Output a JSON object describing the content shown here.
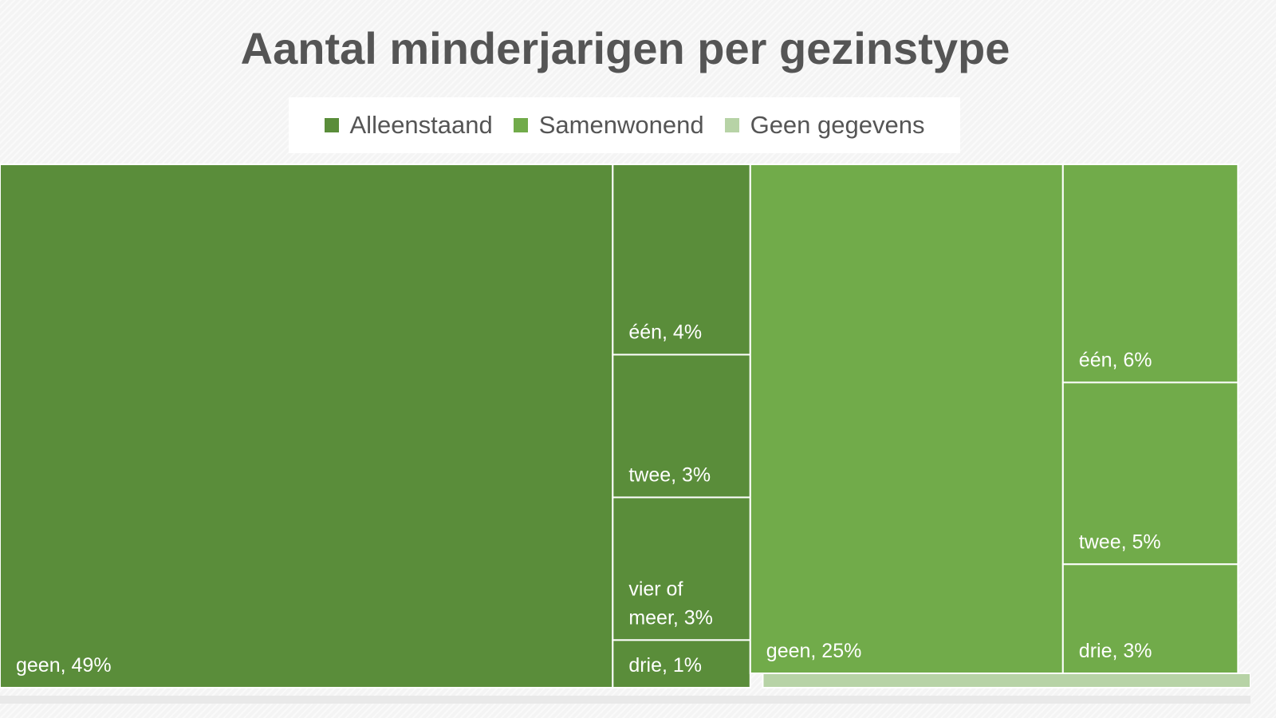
{
  "chart_data": {
    "type": "treemap",
    "title": "Aantal minderjarigen per gezinstype",
    "legend": [
      {
        "label": "Alleenstaand",
        "color": "#5a8d3a"
      },
      {
        "label": "Samenwonend",
        "color": "#71ab4a"
      },
      {
        "label": "Geen gegevens",
        "color": "#b7d3a6"
      }
    ],
    "legend_position": "top-center",
    "groups": [
      {
        "name": "Alleenstaand",
        "color": "#5a8d3a",
        "items": [
          {
            "label": "geen, 49%",
            "value": 49
          },
          {
            "label": "één, 4%",
            "value": 4
          },
          {
            "label": "twee, 3%",
            "value": 3
          },
          {
            "label": "vier of meer, 3%",
            "value": 3
          },
          {
            "label": "drie, 1%",
            "value": 1
          }
        ]
      },
      {
        "name": "Samenwonend",
        "color": "#71ab4a",
        "items": [
          {
            "label": "geen, 25%",
            "value": 25
          },
          {
            "label": "één, 6%",
            "value": 6
          },
          {
            "label": "twee, 5%",
            "value": 5
          },
          {
            "label": "drie, 3%",
            "value": 3
          }
        ]
      },
      {
        "name": "Geen gegevens",
        "color": "#b7d3a6",
        "items": [
          {
            "label": "",
            "value": 1
          }
        ]
      }
    ]
  }
}
